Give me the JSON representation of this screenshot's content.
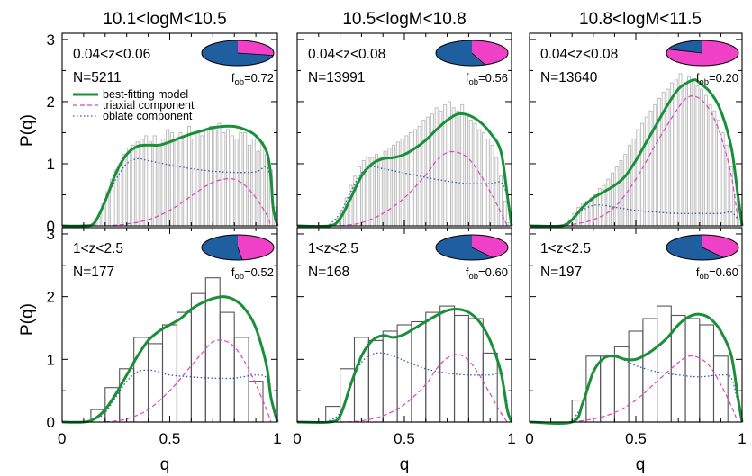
{
  "colors": {
    "model": "#1a8f3a",
    "triaxial": "#e040c0",
    "oblate": "#2a5fa8",
    "hist_gray": "#bdbdbd",
    "hist_black": "#555555",
    "pie_blue": "#1f5fa0",
    "pie_magenta": "#f040c8"
  },
  "y_title": "P(q)",
  "x_title": "q",
  "legend": {
    "model": "best-fitting model",
    "triaxial": "triaxial component",
    "oblate": "oblate component"
  },
  "chart_data": [
    {
      "type": "line",
      "panel": "top-left",
      "column_title": "10.1<logM<10.5",
      "zlabel": "0.04<z<0.06",
      "nlabel": "N=5211",
      "fob_prefix": "f",
      "fob_sub": "ob",
      "fob_value": "=0.72",
      "fob": 0.72,
      "xlim": [
        0,
        1
      ],
      "ylim": [
        0,
        3.1
      ],
      "legend_placement": "left",
      "hist": {
        "style": "fine",
        "bins": 50,
        "values": [
          0,
          0,
          0,
          0,
          0,
          0,
          0,
          0.05,
          0.15,
          0.35,
          0.55,
          0.75,
          0.9,
          1.0,
          1.15,
          1.25,
          1.3,
          1.35,
          1.4,
          1.45,
          1.35,
          1.45,
          1.3,
          1.4,
          1.55,
          1.5,
          1.4,
          1.5,
          1.45,
          1.6,
          1.4,
          1.5,
          1.45,
          1.55,
          1.6,
          1.55,
          1.65,
          1.5,
          1.55,
          1.45,
          1.4,
          1.5,
          1.5,
          1.3,
          1.4,
          1.2,
          1.35,
          1.15,
          0.9,
          0.3
        ]
      },
      "series": [
        {
          "name": "best-fitting model",
          "kind": "model",
          "x": [
            0,
            0.1,
            0.15,
            0.2,
            0.25,
            0.3,
            0.35,
            0.4,
            0.45,
            0.5,
            0.55,
            0.6,
            0.65,
            0.7,
            0.75,
            0.8,
            0.85,
            0.9,
            0.95,
            0.97,
            0.98,
            1.0
          ],
          "y": [
            0,
            0,
            0.05,
            0.4,
            0.85,
            1.15,
            1.28,
            1.3,
            1.3,
            1.35,
            1.42,
            1.48,
            1.53,
            1.58,
            1.6,
            1.6,
            1.55,
            1.45,
            1.2,
            0.8,
            0.3,
            0
          ]
        },
        {
          "name": "triaxial component",
          "kind": "triaxial",
          "x": [
            0.2,
            0.3,
            0.4,
            0.5,
            0.6,
            0.65,
            0.7,
            0.75,
            0.8,
            0.85,
            0.9,
            0.95,
            0.97
          ],
          "y": [
            0,
            0.03,
            0.1,
            0.25,
            0.48,
            0.6,
            0.7,
            0.75,
            0.75,
            0.65,
            0.45,
            0.18,
            0
          ]
        },
        {
          "name": "oblate component",
          "kind": "oblate",
          "x": [
            0.15,
            0.2,
            0.25,
            0.3,
            0.35,
            0.4,
            0.5,
            0.6,
            0.7,
            0.8,
            0.9,
            0.95,
            0.97
          ],
          "y": [
            0.05,
            0.4,
            0.75,
            1.0,
            1.08,
            1.05,
            0.98,
            0.92,
            0.88,
            0.86,
            0.87,
            0.95,
            0.7
          ]
        }
      ]
    },
    {
      "type": "line",
      "panel": "top-middle",
      "column_title": "10.5<logM<10.8",
      "zlabel": "0.04<z<0.08",
      "nlabel": "N=13991",
      "fob_prefix": "f",
      "fob_sub": "ob",
      "fob_value": "=0.56",
      "fob": 0.56,
      "xlim": [
        0,
        1
      ],
      "ylim": [
        0,
        3.1
      ],
      "hist": {
        "style": "fine",
        "bins": 50,
        "values": [
          0,
          0,
          0,
          0,
          0,
          0,
          0,
          0,
          0.03,
          0.12,
          0.25,
          0.45,
          0.65,
          0.8,
          0.95,
          1.05,
          1.1,
          1.1,
          1.15,
          1.1,
          1.2,
          1.25,
          1.3,
          1.35,
          1.4,
          1.45,
          1.5,
          1.55,
          1.6,
          1.7,
          1.75,
          1.8,
          1.9,
          1.85,
          1.95,
          2.0,
          1.9,
          1.85,
          1.95,
          1.8,
          1.7,
          1.65,
          1.55,
          1.5,
          1.4,
          1.3,
          1.1,
          0.8,
          0.4,
          0.05
        ]
      },
      "series": [
        {
          "name": "best-fitting model",
          "kind": "model",
          "x": [
            0,
            0.15,
            0.2,
            0.25,
            0.3,
            0.35,
            0.4,
            0.45,
            0.5,
            0.55,
            0.6,
            0.65,
            0.7,
            0.75,
            0.8,
            0.85,
            0.9,
            0.95,
            0.98,
            1.0
          ],
          "y": [
            0,
            0,
            0.12,
            0.45,
            0.8,
            1.0,
            1.08,
            1.1,
            1.15,
            1.25,
            1.38,
            1.55,
            1.7,
            1.8,
            1.78,
            1.68,
            1.5,
            1.2,
            0.5,
            0
          ]
        },
        {
          "name": "triaxial component",
          "kind": "triaxial",
          "x": [
            0.2,
            0.3,
            0.4,
            0.5,
            0.6,
            0.65,
            0.7,
            0.75,
            0.8,
            0.85,
            0.9,
            0.95,
            0.98
          ],
          "y": [
            0,
            0.05,
            0.2,
            0.45,
            0.82,
            1.05,
            1.18,
            1.18,
            1.08,
            0.85,
            0.55,
            0.22,
            0
          ]
        },
        {
          "name": "oblate component",
          "kind": "oblate",
          "x": [
            0.15,
            0.2,
            0.25,
            0.3,
            0.35,
            0.4,
            0.5,
            0.6,
            0.7,
            0.8,
            0.9,
            0.95,
            0.98
          ],
          "y": [
            0.02,
            0.2,
            0.55,
            0.85,
            0.95,
            0.92,
            0.85,
            0.78,
            0.72,
            0.68,
            0.68,
            0.7,
            0.5
          ]
        }
      ]
    },
    {
      "type": "line",
      "panel": "top-right",
      "column_title": "10.8<logM<11.5",
      "zlabel": "0.04<z<0.08",
      "nlabel": "N=13640",
      "fob_prefix": "f",
      "fob_sub": "ob",
      "fob_value": "=0.20",
      "fob": 0.2,
      "xlim": [
        0,
        1
      ],
      "ylim": [
        0,
        3.1
      ],
      "hist": {
        "style": "fine",
        "bins": 50,
        "values": [
          0,
          0,
          0,
          0,
          0,
          0,
          0,
          0,
          0.03,
          0.1,
          0.2,
          0.3,
          0.35,
          0.4,
          0.45,
          0.5,
          0.6,
          0.65,
          0.75,
          0.85,
          0.95,
          1.05,
          1.15,
          1.3,
          1.4,
          1.55,
          1.65,
          1.75,
          1.85,
          1.95,
          2.05,
          2.15,
          2.2,
          2.3,
          2.35,
          2.45,
          2.3,
          2.4,
          2.35,
          2.25,
          2.2,
          2.1,
          1.95,
          1.85,
          1.7,
          1.5,
          1.3,
          0.95,
          0.5,
          0.1
        ]
      },
      "series": [
        {
          "name": "best-fitting model",
          "kind": "model",
          "x": [
            0,
            0.15,
            0.2,
            0.25,
            0.3,
            0.35,
            0.4,
            0.45,
            0.5,
            0.55,
            0.6,
            0.65,
            0.7,
            0.75,
            0.78,
            0.8,
            0.85,
            0.9,
            0.95,
            0.98,
            1.0
          ],
          "y": [
            0,
            0,
            0.1,
            0.3,
            0.45,
            0.55,
            0.65,
            0.8,
            1.05,
            1.35,
            1.65,
            1.95,
            2.2,
            2.32,
            2.35,
            2.3,
            2.15,
            1.85,
            1.25,
            0.5,
            0
          ]
        },
        {
          "name": "triaxial component",
          "kind": "triaxial",
          "x": [
            0.2,
            0.3,
            0.4,
            0.5,
            0.6,
            0.7,
            0.75,
            0.8,
            0.85,
            0.9,
            0.95,
            0.98
          ],
          "y": [
            0.02,
            0.1,
            0.3,
            0.75,
            1.35,
            1.9,
            2.08,
            2.05,
            1.85,
            1.45,
            0.8,
            0.1
          ]
        },
        {
          "name": "oblate component",
          "kind": "oblate",
          "x": [
            0.15,
            0.2,
            0.25,
            0.3,
            0.35,
            0.4,
            0.5,
            0.6,
            0.7,
            0.8,
            0.9,
            0.95,
            0.98
          ],
          "y": [
            0,
            0.1,
            0.25,
            0.33,
            0.33,
            0.3,
            0.25,
            0.22,
            0.2,
            0.2,
            0.2,
            0.22,
            0.1
          ]
        }
      ]
    },
    {
      "type": "line",
      "panel": "bottom-left",
      "zlabel": "1<z<2.5",
      "nlabel": "N=177",
      "fob_prefix": "f",
      "fob_sub": "ob",
      "fob_value": "=0.52",
      "fob": 0.52,
      "xlim": [
        0,
        1
      ],
      "ylim": [
        0,
        3.1
      ],
      "hist": {
        "style": "coarse",
        "bins": 15,
        "values": [
          0,
          0,
          0.2,
          0.55,
          0.85,
          1.35,
          1.25,
          1.55,
          1.75,
          2.05,
          2.3,
          1.75,
          1.35,
          0.65,
          0
        ]
      },
      "series": [
        {
          "name": "best-fitting model",
          "kind": "model",
          "x": [
            0,
            0.1,
            0.15,
            0.2,
            0.25,
            0.3,
            0.35,
            0.4,
            0.45,
            0.5,
            0.55,
            0.6,
            0.65,
            0.7,
            0.75,
            0.8,
            0.85,
            0.9,
            0.95,
            0.97,
            1.0
          ],
          "y": [
            0,
            0,
            0.05,
            0.2,
            0.45,
            0.75,
            1.05,
            1.3,
            1.45,
            1.55,
            1.65,
            1.8,
            1.9,
            1.97,
            2.0,
            1.95,
            1.8,
            1.5,
            0.9,
            0.4,
            0
          ]
        },
        {
          "name": "triaxial component",
          "kind": "triaxial",
          "x": [
            0.2,
            0.3,
            0.4,
            0.5,
            0.6,
            0.65,
            0.7,
            0.75,
            0.8,
            0.85,
            0.9,
            0.95,
            0.97
          ],
          "y": [
            0,
            0.05,
            0.2,
            0.5,
            0.9,
            1.1,
            1.28,
            1.3,
            1.2,
            0.95,
            0.6,
            0.2,
            0
          ]
        },
        {
          "name": "oblate component",
          "kind": "oblate",
          "x": [
            0.15,
            0.2,
            0.25,
            0.3,
            0.35,
            0.4,
            0.45,
            0.5,
            0.6,
            0.7,
            0.8,
            0.9,
            0.95,
            0.97
          ],
          "y": [
            0.03,
            0.15,
            0.4,
            0.65,
            0.8,
            0.83,
            0.8,
            0.75,
            0.72,
            0.7,
            0.7,
            0.75,
            0.7,
            0.4
          ]
        }
      ]
    },
    {
      "type": "line",
      "panel": "bottom-middle",
      "zlabel": "1<z<2.5",
      "nlabel": "N=168",
      "fob_prefix": "f",
      "fob_sub": "ob",
      "fob_value": "=0.60",
      "fob": 0.6,
      "xlim": [
        0,
        1
      ],
      "ylim": [
        0,
        3.1
      ],
      "hist": {
        "style": "coarse",
        "bins": 15,
        "values": [
          0,
          0,
          0.25,
          0.85,
          1.35,
          1.3,
          1.45,
          1.55,
          1.6,
          1.75,
          1.85,
          1.7,
          1.65,
          1.1,
          0
        ]
      },
      "series": [
        {
          "name": "best-fitting model",
          "kind": "model",
          "x": [
            0,
            0.15,
            0.2,
            0.25,
            0.3,
            0.35,
            0.4,
            0.45,
            0.5,
            0.55,
            0.6,
            0.65,
            0.7,
            0.75,
            0.8,
            0.85,
            0.9,
            0.95,
            0.98,
            1.0
          ],
          "y": [
            0,
            0,
            0.1,
            0.6,
            1.05,
            1.3,
            1.38,
            1.35,
            1.4,
            1.5,
            1.6,
            1.7,
            1.78,
            1.8,
            1.75,
            1.6,
            1.3,
            0.8,
            0.2,
            0
          ]
        },
        {
          "name": "triaxial component",
          "kind": "triaxial",
          "x": [
            0.2,
            0.3,
            0.4,
            0.5,
            0.6,
            0.65,
            0.7,
            0.75,
            0.8,
            0.85,
            0.9,
            0.95,
            0.98
          ],
          "y": [
            0,
            0.02,
            0.1,
            0.28,
            0.6,
            0.85,
            1.02,
            1.08,
            0.98,
            0.75,
            0.45,
            0.15,
            0
          ]
        },
        {
          "name": "oblate component",
          "kind": "oblate",
          "x": [
            0.15,
            0.2,
            0.25,
            0.3,
            0.35,
            0.4,
            0.45,
            0.5,
            0.6,
            0.7,
            0.8,
            0.9,
            0.95,
            0.98
          ],
          "y": [
            0.02,
            0.15,
            0.6,
            0.95,
            1.08,
            1.1,
            1.05,
            0.98,
            0.85,
            0.78,
            0.75,
            0.75,
            0.75,
            0.3
          ]
        }
      ]
    },
    {
      "type": "line",
      "panel": "bottom-right",
      "zlabel": "1<z<2.5",
      "nlabel": "N=197",
      "fob_prefix": "f",
      "fob_sub": "ob",
      "fob_value": "=0.60",
      "fob": 0.6,
      "xlim": [
        0,
        1
      ],
      "ylim": [
        0,
        3.1
      ],
      "hist": {
        "style": "coarse",
        "bins": 15,
        "values": [
          0,
          0,
          0,
          0.35,
          1.05,
          1.05,
          1.2,
          1.45,
          1.65,
          1.85,
          1.7,
          1.65,
          1.55,
          1.05,
          0
        ]
      },
      "series": [
        {
          "name": "best-fitting model",
          "kind": "model",
          "x": [
            0,
            0.2,
            0.25,
            0.3,
            0.35,
            0.4,
            0.45,
            0.5,
            0.55,
            0.6,
            0.65,
            0.7,
            0.75,
            0.8,
            0.85,
            0.9,
            0.95,
            0.98,
            1.0
          ],
          "y": [
            0,
            0,
            0.3,
            0.8,
            1.02,
            1.05,
            1.0,
            1.0,
            1.08,
            1.2,
            1.35,
            1.55,
            1.68,
            1.72,
            1.65,
            1.45,
            1.05,
            0.4,
            0
          ]
        },
        {
          "name": "triaxial component",
          "kind": "triaxial",
          "x": [
            0.2,
            0.3,
            0.4,
            0.5,
            0.6,
            0.7,
            0.75,
            0.8,
            0.85,
            0.9,
            0.95,
            0.98
          ],
          "y": [
            0,
            0.05,
            0.15,
            0.35,
            0.65,
            0.95,
            1.05,
            1.02,
            0.88,
            0.6,
            0.25,
            0
          ]
        },
        {
          "name": "oblate component",
          "kind": "oblate",
          "x": [
            0.2,
            0.25,
            0.3,
            0.35,
            0.4,
            0.45,
            0.5,
            0.6,
            0.7,
            0.8,
            0.9,
            0.95,
            0.98
          ],
          "y": [
            0,
            0.3,
            0.8,
            1.02,
            1.05,
            0.98,
            0.9,
            0.8,
            0.75,
            0.72,
            0.75,
            0.7,
            0.3
          ]
        }
      ]
    }
  ]
}
